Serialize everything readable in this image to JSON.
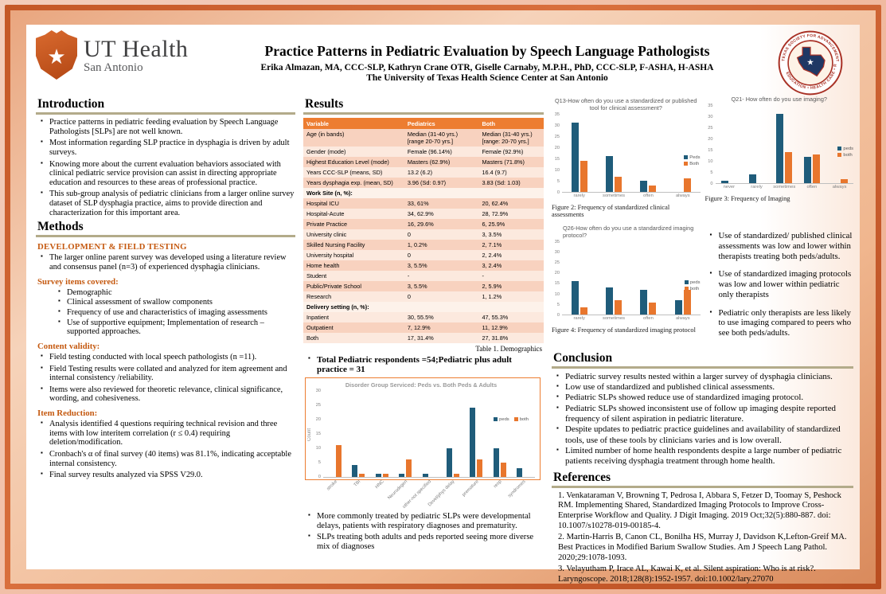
{
  "header": {
    "logo": {
      "brand": "UT Health",
      "city": "San Antonio",
      "star": "★"
    },
    "title": "Practice Patterns in Pediatric Evaluation by Speech Language Pathologists",
    "authors": "Erika Almazan, MA, CCC-SLP, Kathryn Crane OTR, Giselle Carnaby, M.P.H., PhD, CCC-SLP, F-ASHA, H-ASHA",
    "affiliation": "The University of Texas Health Science Center at San Antonio",
    "seal": {
      "top_text": "TEXAS SOCIETY FOR ADVANCEMENT OF HEALTH PROFESSIONS",
      "bottom_text": "EDUCATION • HEALTH CARE • RESEARCH • SERVICE",
      "star": "★"
    }
  },
  "introduction": {
    "heading": "Introduction",
    "bullets": [
      "Practice patterns in pediatric feeding evaluation by Speech Language Pathologists [SLPs] are not well known.",
      "Most information regarding SLP practice in dysphagia is driven by adult surveys.",
      "Knowing more about the current evaluation behaviors associated with clinical pediatric service provision can assist in directing appropriate education and resources to these areas of professional practice.",
      "This sub-group analysis of pediatric clinicians from a larger online survey dataset of SLP dysphagia practice, aims to provide direction and characterization for this important area."
    ]
  },
  "methods": {
    "heading": "Methods",
    "dev_title": "DEVELOPMENT & FIELD TESTING",
    "dev_bullets": [
      "The larger online parent survey was developed using a literature review and consensus panel (n=3) of experienced dysphagia clinicians."
    ],
    "survey_title": "Survey items covered:",
    "survey_bullets": [
      "Demographic",
      "Clinical assessment of swallow components",
      "Frequency of use and characteristics of imaging assessments",
      "Use of supportive equipment; Implementation of research – supported approaches."
    ],
    "validity_title": "Content validity:",
    "validity_bullets": [
      "Field testing conducted with local speech pathologists (n =11).",
      "Field Testing results were collated and analyzed for item agreement and internal consistency /reliability.",
      "Items were also reviewed for theoretic relevance, clinical significance, wording, and cohesiveness."
    ],
    "reduction_title": "Item Reduction:",
    "reduction_bullets": [
      "Analysis identified 4 questions requiring technical revision and three items with low interitem correlation (r ≤ 0.4) requiring deletion/modification.",
      "Cronbach's α of final survey (40 items)  was 81.1%, indicating acceptable internal consistency.",
      "Final survey results analyzed via SPSS V29.0."
    ]
  },
  "results": {
    "heading": "Results",
    "table": {
      "headers": [
        "Variable",
        "Pediatrics",
        "Both"
      ],
      "rows": [
        {
          "label": "Age (in bands)",
          "peds": "Median (31-40 yrs.) [range 20-70 yrs.]",
          "both": "Median (31-40 yrs.) [range: 20-70 yrs.]"
        },
        {
          "label": "Gender (mode)",
          "peds": "Female (96.14%)",
          "both": "Female (92.9%)"
        },
        {
          "label": "Highest Education Level (mode)",
          "peds": "Masters (62.9%)",
          "both": "Masters (71.8%)"
        },
        {
          "label": "Years CCC-SLP (means, SD)",
          "peds": "13.2 (6.2)",
          "both": "16.4 (9.7)"
        },
        {
          "label": "Years dysphagia exp. (mean, SD)",
          "peds": "3.96 (Sd: 0.97)",
          "both": "3.83 (Sd: 1.03)"
        },
        {
          "label": "Work Site (n, %):",
          "group": true
        },
        {
          "label": "Hospital ICU",
          "peds": "33, 61%",
          "both": "20, 62.4%"
        },
        {
          "label": "Hospital-Acute",
          "peds": "34, 62.9%",
          "both": "28, 72.9%"
        },
        {
          "label": "Private Practice",
          "peds": "16, 29.6%",
          "both": "6, 25.9%"
        },
        {
          "label": "University clinic",
          "peds": "0",
          "both": "3, 3.5%"
        },
        {
          "label": "Skilled Nursing Facility",
          "peds": "1, 0.2%",
          "both": "2, 7.1%"
        },
        {
          "label": "University hospital",
          "peds": "0",
          "both": "2, 2.4%"
        },
        {
          "label": "Home health",
          "peds": "3, 5.5%",
          "both": "3, 2.4%"
        },
        {
          "label": "Student",
          "peds": "-",
          "both": "-"
        },
        {
          "label": "Public/Private School",
          "peds": "3, 5.5%",
          "both": "2, 5.9%"
        },
        {
          "label": "Research",
          "peds": "0",
          "both": "1, 1.2%"
        },
        {
          "label": "Delivery setting (n, %):",
          "group": true
        },
        {
          "label": "Inpatient",
          "peds": "30, 55.5%",
          "both": "47, 55.3%"
        },
        {
          "label": "Outpatient",
          "peds": "7, 12.9%",
          "both": "11, 12.9%"
        },
        {
          "label": "Both",
          "peds": "17, 31.4%",
          "both": "27, 31.8%"
        }
      ],
      "caption": "Table 1. Demographics"
    },
    "total_bullet": "Total Pediatric respondents =54;Pediatric plus adult practice = 31",
    "observations": [
      "Use of standardized/ published clinical assessments was low and lower within therapists treating both peds/adults.",
      "Use of standardized imaging protocols was low and lower within pediatric only therapists",
      "Pediatric only therapists are less likely to use imaging compared to peers who see both peds/adults."
    ],
    "findings_bottom": [
      "More commonly treated by pediatric SLPs were developmental delays, patients with respiratory diagnoses and prematurity.",
      "SLPs treating both adults and peds reported seeing  more diverse mix of diagnoses"
    ]
  },
  "conclusion": {
    "heading": "Conclusion",
    "bullets": [
      "Pediatric survey results nested within a larger survey of dysphagia clinicians.",
      "Low use of standardized and published clinical assessments.",
      "Pediatric SLPs showed reduce use of standardized imaging protocol.",
      "Pediatric SLPs showed inconsistent use of follow up imaging despite reported frequency of silent aspiration in pediatric literature.",
      "Despite updates to pediatric practice guidelines and availability of standardized tools, use of these tools by clinicians varies and is low overall.",
      "Limited number of home health respondents despite a large number of pediatric patients receiving dysphagia treatment through home health."
    ]
  },
  "references": {
    "heading": "References",
    "items": [
      "1. Venkataraman V, Browning T, Pedrosa I, Abbara S, Fetzer D, Toomay  S, Peshock RM. Implementing Shared, Standardized Imaging Protocols to Improve Cross-Enterprise Workflow and Quality. J Digit Imaging. 2019 Oct;32(5):880-887. doi: 10.1007/s10278-019-00185-4.",
      "2. Martin-Harris B, Canon CL, Bonilha HS, Murray J, Davidson K,Lefton-Greif MA. Best Practices in Modified Barium Swallow Studies.  Am J Speech Lang Pathol. 2020;29:1078-1093.",
      "3. Velayutham P, Irace AL, Kawai K, et al. Silent aspiration: Who is at risk?. Laryngoscope. 2018;128(8):1952-1957. doi:10.1002/lary.27070"
    ]
  },
  "colors": {
    "peds": "#1f5c7a",
    "both": "#e8762d",
    "table_header": "#ed7d31",
    "frame": "#c45726",
    "heading_rule": "#b3ab8a",
    "subhead_orange": "#c55a11",
    "top_rule_maroon": "#7d241e"
  },
  "chart_data": [
    {
      "id": "fig2",
      "type": "bar",
      "title": "Q13-How often do you use a standardized or published tool for clinical assessment?",
      "categories": [
        "rarely",
        "sometimes",
        "often",
        "always"
      ],
      "series": [
        {
          "name": "Peds",
          "values": [
            31,
            16,
            5,
            0
          ]
        },
        {
          "name": "Both",
          "values": [
            14,
            7,
            3,
            6
          ]
        }
      ],
      "ylim": [
        0,
        35
      ],
      "ytick_step": 5,
      "grid": false,
      "legend_position": "right",
      "caption": "Figure 2: Frequency of standardized clinical assessments"
    },
    {
      "id": "fig3",
      "type": "bar",
      "title": "Q21- How often do you use imaging?",
      "categories": [
        "never",
        "rarely",
        "sometimes",
        "often",
        "always"
      ],
      "series": [
        {
          "name": "peds",
          "values": [
            1,
            4,
            31,
            12,
            0
          ]
        },
        {
          "name": "both",
          "values": [
            0,
            0,
            14,
            13,
            2
          ]
        }
      ],
      "ylim": [
        0,
        35
      ],
      "ytick_step": 5,
      "grid": false,
      "legend_position": "right",
      "caption": "Figure 3: Frequency of Imaging"
    },
    {
      "id": "fig4",
      "type": "bar",
      "title": "Q26-How often do you use a standardized imaging protocol?",
      "categories": [
        "rarely",
        "sometimes",
        "often",
        "always"
      ],
      "series": [
        {
          "name": "peds",
          "values": [
            16,
            13,
            12,
            7
          ]
        },
        {
          "name": "both",
          "values": [
            3.5,
            7,
            6,
            12
          ]
        }
      ],
      "ylim": [
        0,
        35
      ],
      "ytick_step": 5,
      "grid": false,
      "legend_position": "right",
      "caption": "Figure 4:  Frequency of standardized imaging protocol"
    },
    {
      "id": "disorder",
      "type": "bar",
      "title": "Disorder Group Serviced: Peds vs. Both Peds & Adults",
      "categories": [
        "stroke",
        "TBI",
        "HNC",
        "Neurodegen",
        "other-not specified",
        "Devel/phys delay",
        "premature",
        "resp",
        "syndromes"
      ],
      "series": [
        {
          "name": "peds",
          "values": [
            0,
            4,
            1,
            1,
            1,
            10,
            24,
            10,
            3
          ]
        },
        {
          "name": "both",
          "values": [
            11,
            1,
            1,
            6,
            0,
            1,
            6,
            5,
            0
          ]
        }
      ],
      "ylim": [
        0,
        30
      ],
      "ytick_step": 5,
      "ylabel": "Count",
      "grid": false,
      "legend_position": "top-right",
      "rotate_labels": true
    }
  ]
}
